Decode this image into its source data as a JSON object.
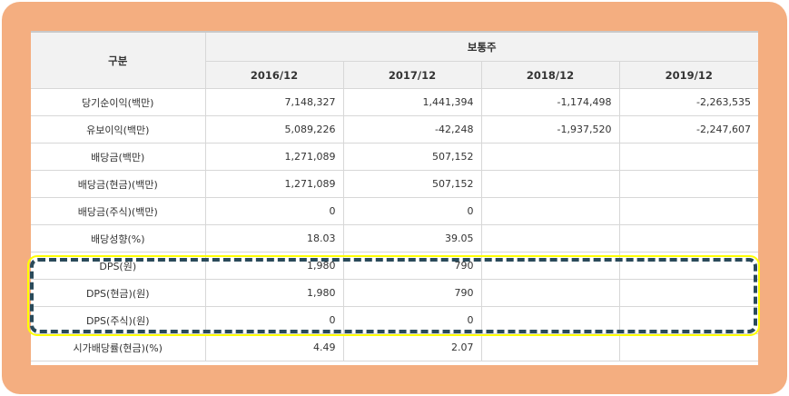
{
  "table": {
    "header": {
      "category": "구분",
      "group": "보통주",
      "periods": [
        "2016/12",
        "2017/12",
        "2018/12",
        "2019/12"
      ]
    },
    "rows": [
      {
        "label": "당기순이익(백만)",
        "values": [
          "7,148,327",
          "1,441,394",
          "-1,174,498",
          "-2,263,535"
        ]
      },
      {
        "label": "유보이익(백만)",
        "values": [
          "5,089,226",
          "-42,248",
          "-1,937,520",
          "-2,247,607"
        ]
      },
      {
        "label": "배당금(백만)",
        "values": [
          "1,271,089",
          "507,152",
          "",
          ""
        ]
      },
      {
        "label": "배당금(현금)(백만)",
        "values": [
          "1,271,089",
          "507,152",
          "",
          ""
        ]
      },
      {
        "label": "배당금(주식)(백만)",
        "values": [
          "0",
          "0",
          "",
          ""
        ]
      },
      {
        "label": "배당성향(%)",
        "values": [
          "18.03",
          "39.05",
          "",
          ""
        ]
      },
      {
        "label": "DPS(원)",
        "values": [
          "1,980",
          "790",
          "",
          ""
        ]
      },
      {
        "label": "DPS(현금)(원)",
        "values": [
          "1,980",
          "790",
          "",
          ""
        ]
      },
      {
        "label": "DPS(주식)(원)",
        "values": [
          "0",
          "0",
          "",
          ""
        ]
      },
      {
        "label": "시가배당률(현금)(%)",
        "values": [
          "4.49",
          "2.07",
          "",
          ""
        ]
      }
    ]
  },
  "colors": {
    "frame": "#f4ae80",
    "header_bg": "#f2f2f2",
    "grid": "#d7d7d7",
    "highlight_outer": "#ffff00",
    "highlight_dash": "#2a4a5a"
  }
}
